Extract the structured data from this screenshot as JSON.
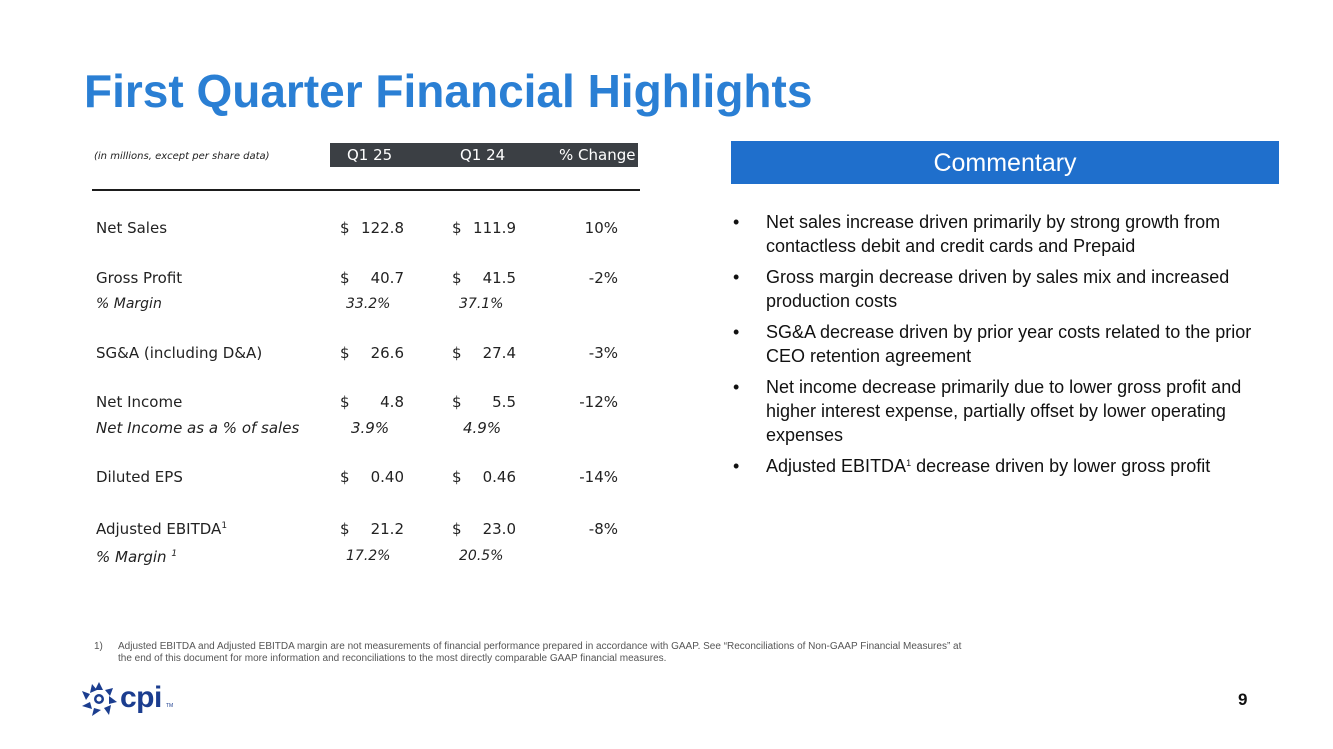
{
  "title": "First Quarter Financial Highlights",
  "table": {
    "units_note": "(in millions, except per share data)",
    "headers": [
      "Q1 25",
      "Q1 24",
      "% Change"
    ],
    "currency": "$",
    "rows": [
      {
        "label": "Net Sales",
        "q1_25": "122.8",
        "q1_24": "111.9",
        "change": "10%"
      },
      {
        "label": "Gross Profit",
        "q1_25": "40.7",
        "q1_24": "41.5",
        "change": "-2%"
      },
      {
        "label": "SG&A (including D&A)",
        "q1_25": "26.6",
        "q1_24": "27.4",
        "change": "-3%"
      },
      {
        "label": "Net Income",
        "q1_25": "4.8",
        "q1_24": "5.5",
        "change": "-12%"
      },
      {
        "label": "Diluted EPS",
        "q1_25": "0.40",
        "q1_24": "0.46",
        "change": "-14%"
      },
      {
        "label": "Adjusted EBITDA",
        "q1_25": "21.2",
        "q1_24": "23.0",
        "change": "-8%"
      }
    ],
    "subrows": [
      {
        "label": "% Margin",
        "q1_25": "33.2%",
        "q1_24": "37.1%"
      },
      {
        "label": "Net Income as a % of sales",
        "q1_25": "3.9%",
        "q1_24": "4.9%"
      },
      {
        "label": "% Margin",
        "q1_25": "17.2%",
        "q1_24": "20.5%"
      }
    ],
    "footnote_mark": "1"
  },
  "commentary": {
    "heading": "Commentary",
    "bullet": "•",
    "items": [
      "Net sales increase driven primarily by strong growth from contactless debit and credit cards and Prepaid",
      "Gross margin decrease driven by sales mix and increased production costs",
      "SG&A decrease driven by prior year costs related to the prior CEO retention agreement",
      "Net income decrease primarily due to lower gross profit and higher interest expense, partially offset by lower operating expenses"
    ],
    "last_item": {
      "before": "Adjusted EBITDA",
      "sup": "1",
      "after": " decrease driven by lower gross profit"
    }
  },
  "footnote": {
    "number": "1)",
    "text": "Adjusted EBITDA and Adjusted EBITDA margin are not measurements of financial performance prepared in accordance with GAAP. See “Reconciliations of Non-GAAP Financial Measures” at the end of this document for more information and reconciliations to the most directly comparable GAAP financial measures."
  },
  "logo": {
    "text": "cpi",
    "tm": "TM",
    "color": "#1b3d8f"
  },
  "page_number": "9",
  "colors": {
    "title": "#2a7fd4",
    "commentary_header": "#1f6fcc",
    "table_header": "#3b3f44"
  }
}
